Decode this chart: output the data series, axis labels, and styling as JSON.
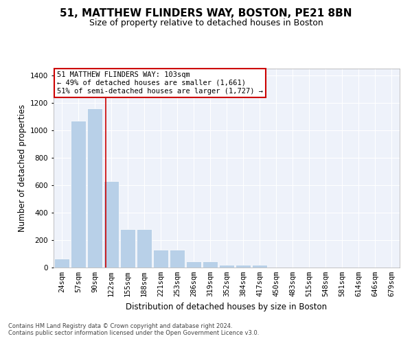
{
  "title": "51, MATTHEW FLINDERS WAY, BOSTON, PE21 8BN",
  "subtitle": "Size of property relative to detached houses in Boston",
  "xlabel": "Distribution of detached houses by size in Boston",
  "ylabel": "Number of detached properties",
  "categories": [
    "24sqm",
    "57sqm",
    "90sqm",
    "122sqm",
    "155sqm",
    "188sqm",
    "221sqm",
    "253sqm",
    "286sqm",
    "319sqm",
    "352sqm",
    "384sqm",
    "417sqm",
    "450sqm",
    "483sqm",
    "515sqm",
    "548sqm",
    "581sqm",
    "614sqm",
    "646sqm",
    "679sqm"
  ],
  "values": [
    65,
    1070,
    1160,
    630,
    280,
    280,
    130,
    130,
    45,
    45,
    20,
    20,
    20,
    0,
    0,
    0,
    0,
    0,
    0,
    0,
    0
  ],
  "bar_color": "#b8d0e8",
  "bar_edgecolor": "white",
  "property_line_x": 2.67,
  "property_line_color": "#cc0000",
  "annotation_text": "51 MATTHEW FLINDERS WAY: 103sqm\n← 49% of detached houses are smaller (1,661)\n51% of semi-detached houses are larger (1,727) →",
  "annotation_box_color": "#cc0000",
  "ylim": [
    0,
    1450
  ],
  "yticks": [
    0,
    200,
    400,
    600,
    800,
    1000,
    1200,
    1400
  ],
  "plot_background": "#eef2fa",
  "grid_color": "#ffffff",
  "footer": "Contains HM Land Registry data © Crown copyright and database right 2024.\nContains public sector information licensed under the Open Government Licence v3.0.",
  "title_fontsize": 11,
  "subtitle_fontsize": 9,
  "xlabel_fontsize": 8.5,
  "ylabel_fontsize": 8.5,
  "tick_fontsize": 7.5,
  "annotation_fontsize": 7.5,
  "footer_fontsize": 6
}
